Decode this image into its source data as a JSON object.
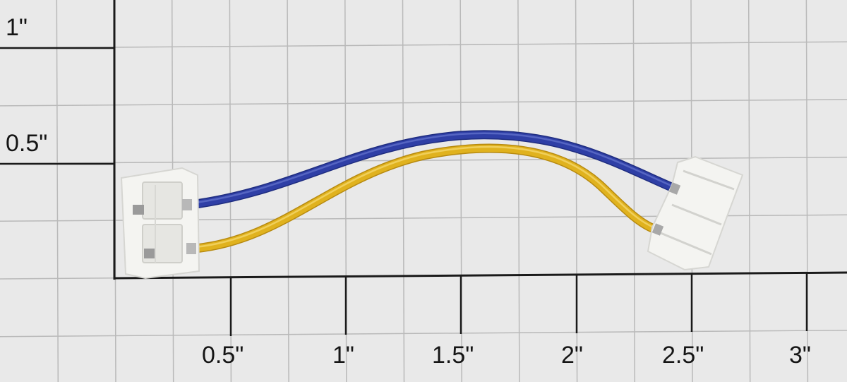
{
  "scale": {
    "vertical_labels": [
      "1\"",
      "0.5\""
    ],
    "horizontal_labels": [
      "0.5\"",
      "1\"",
      "1.5\"",
      "2\"",
      "2.5\"",
      "3\""
    ]
  },
  "colors": {
    "paper": "#e9e9e9",
    "minor_grid": "#b9b9b9",
    "major_axis": "#1a1a1a",
    "blue_wire": "#2f3fa6",
    "yellow_wire": "#e0b21e",
    "connector_body": "#f4f4f1",
    "connector_shadow": "#d6d6d2",
    "terminal_metal": "#9a9a9a"
  },
  "objects": [
    "left-connector",
    "right-connector",
    "blue-wire",
    "yellow-wire"
  ]
}
